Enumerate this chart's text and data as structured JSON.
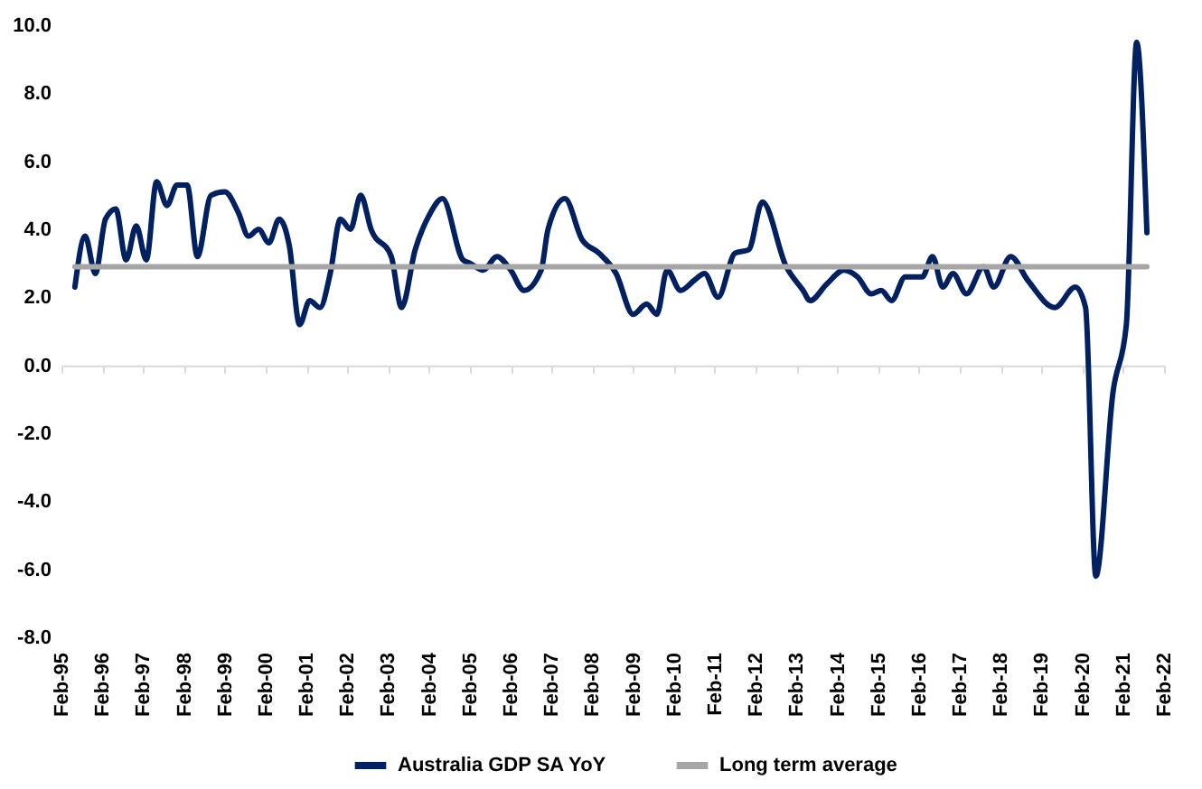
{
  "chart_data": {
    "type": "line",
    "xlim": [
      "1995-02",
      "2022-02"
    ],
    "xticks": [
      {
        "value": "1995-02",
        "label": "Feb-95"
      },
      {
        "value": "1996-02",
        "label": "Feb-96"
      },
      {
        "value": "1997-02",
        "label": "Feb-97"
      },
      {
        "value": "1998-02",
        "label": "Feb-98"
      },
      {
        "value": "1999-02",
        "label": "Feb-99"
      },
      {
        "value": "2000-02",
        "label": "Feb-00"
      },
      {
        "value": "2001-02",
        "label": "Feb-01"
      },
      {
        "value": "2002-02",
        "label": "Feb-02"
      },
      {
        "value": "2003-02",
        "label": "Feb-03"
      },
      {
        "value": "2004-02",
        "label": "Feb-04"
      },
      {
        "value": "2005-02",
        "label": "Feb-05"
      },
      {
        "value": "2006-02",
        "label": "Feb-06"
      },
      {
        "value": "2007-02",
        "label": "Feb-07"
      },
      {
        "value": "2008-02",
        "label": "Feb-08"
      },
      {
        "value": "2009-02",
        "label": "Feb-09"
      },
      {
        "value": "2010-02",
        "label": "Feb-10"
      },
      {
        "value": "2011-02",
        "label": "Feb-11"
      },
      {
        "value": "2012-02",
        "label": "Feb-12"
      },
      {
        "value": "2013-02",
        "label": "Feb-13"
      },
      {
        "value": "2014-02",
        "label": "Feb-14"
      },
      {
        "value": "2015-02",
        "label": "Feb-15"
      },
      {
        "value": "2016-02",
        "label": "Feb-16"
      },
      {
        "value": "2017-02",
        "label": "Feb-17"
      },
      {
        "value": "2018-02",
        "label": "Feb-18"
      },
      {
        "value": "2019-02",
        "label": "Feb-19"
      },
      {
        "value": "2020-02",
        "label": "Feb-20"
      },
      {
        "value": "2021-02",
        "label": "Feb-21"
      },
      {
        "value": "2022-02",
        "label": "Feb-22"
      }
    ],
    "ylim": [
      -8,
      10
    ],
    "yticks": [
      {
        "value": -8,
        "label": "-8.0"
      },
      {
        "value": -6,
        "label": "-6.0"
      },
      {
        "value": -4,
        "label": "-4.0"
      },
      {
        "value": -2,
        "label": "-2.0"
      },
      {
        "value": 0,
        "label": "0.0"
      },
      {
        "value": 2,
        "label": "2.0"
      },
      {
        "value": 4,
        "label": "4.0"
      },
      {
        "value": 6,
        "label": "6.0"
      },
      {
        "value": 8,
        "label": "8.0"
      },
      {
        "value": 10,
        "label": "10.0"
      }
    ],
    "legend": "bottom",
    "line_style": "solid",
    "marker": "none",
    "series": [
      {
        "name": "Australia GDP SA YoY",
        "color": "#002060",
        "x": [
          "1995-06",
          "1995-09",
          "1995-12",
          "1996-03",
          "1996-06",
          "1996-09",
          "1996-12",
          "1997-03",
          "1997-06",
          "1997-09",
          "1997-12",
          "1998-03",
          "1998-06",
          "1998-10",
          "1999-02",
          "1999-06",
          "1999-09",
          "1999-12",
          "2000-03",
          "2000-06",
          "2000-09",
          "2000-12",
          "2001-03",
          "2001-06",
          "2001-09",
          "2001-12",
          "2002-03",
          "2002-06",
          "2002-09",
          "2003-03",
          "2003-06",
          "2003-10",
          "2004-02",
          "2004-06",
          "2004-12",
          "2005-02",
          "2005-06",
          "2005-10",
          "2006-02",
          "2006-06",
          "2006-11",
          "2007-01",
          "2007-06",
          "2007-11",
          "2008-04",
          "2008-09",
          "2009-02",
          "2009-06",
          "2009-09",
          "2009-12",
          "2010-04",
          "2010-08",
          "2010-11",
          "2011-03",
          "2011-08",
          "2011-12",
          "2012-04",
          "2012-11",
          "2013-04",
          "2013-06",
          "2013-11",
          "2014-04",
          "2014-08",
          "2014-12",
          "2015-03",
          "2015-06",
          "2015-10",
          "2016-03",
          "2016-06",
          "2016-09",
          "2016-12",
          "2017-04",
          "2017-09",
          "2017-12",
          "2018-05",
          "2018-10",
          "2019-06",
          "2019-12",
          "2020-03",
          "2020-06",
          "2020-11",
          "2021-03",
          "2021-06",
          "2021-09"
        ],
        "values": [
          2.3,
          3.8,
          2.7,
          4.3,
          4.6,
          3.1,
          4.1,
          3.1,
          5.4,
          4.7,
          5.3,
          5.3,
          3.2,
          5.0,
          5.1,
          4.5,
          3.8,
          4.0,
          3.6,
          4.3,
          3.5,
          1.2,
          1.9,
          1.7,
          2.7,
          4.3,
          4.0,
          5.0,
          4.0,
          3.2,
          1.7,
          3.4,
          4.4,
          4.9,
          3.1,
          3.0,
          2.8,
          3.2,
          2.8,
          2.2,
          2.8,
          4.0,
          4.9,
          3.7,
          3.3,
          2.7,
          1.5,
          1.8,
          1.5,
          2.8,
          2.2,
          2.5,
          2.7,
          2.0,
          3.3,
          3.4,
          4.8,
          2.9,
          2.2,
          1.9,
          2.4,
          2.8,
          2.6,
          2.1,
          2.2,
          1.9,
          2.6,
          2.6,
          3.2,
          2.3,
          2.7,
          2.1,
          2.9,
          2.3,
          3.2,
          2.5,
          1.7,
          2.3,
          1.7,
          -6.2,
          -0.8,
          1.2,
          9.5,
          3.9
        ]
      },
      {
        "name": "Long term average",
        "color": "#a6a6a6",
        "x": [
          "1995-06",
          "2021-09"
        ],
        "values": [
          2.9,
          2.9
        ]
      }
    ]
  }
}
